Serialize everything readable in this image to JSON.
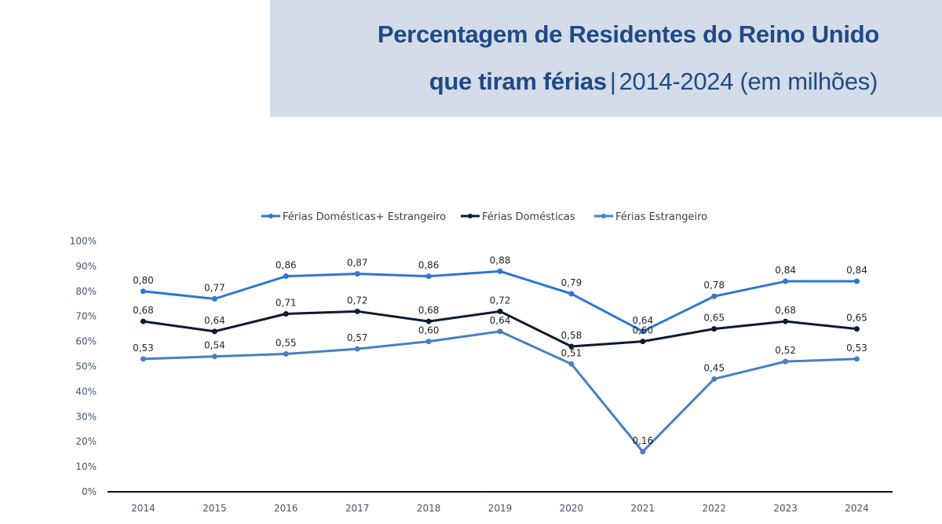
{
  "header": {
    "title_line1": "Percentagem de  Residentes do Reino Unido",
    "title_line2_bold": "que tiram férias",
    "title_line2_sep": "|",
    "title_line2_rest": "2014-2024 (em milhões)"
  },
  "chart_data": {
    "type": "line",
    "title": "Percentagem de Residentes do Reino Unido que tiram férias | 2014-2024 (em milhões)",
    "xlabel": "",
    "ylabel": "",
    "x": [
      "2014",
      "2015",
      "2016",
      "2017",
      "2018",
      "2019",
      "2020",
      "2021",
      "2022",
      "2023",
      "2024"
    ],
    "ylim": [
      0,
      1.0
    ],
    "yticks": [
      0,
      0.1,
      0.2,
      0.3,
      0.4,
      0.5,
      0.6,
      0.7,
      0.8,
      0.9,
      1.0
    ],
    "ytick_labels": [
      "0%",
      "10%",
      "20%",
      "30%",
      "40%",
      "50%",
      "60%",
      "70%",
      "80%",
      "90%",
      "100%"
    ],
    "grid": false,
    "legend_position": "top-center",
    "series": [
      {
        "name": "Férias Domésticas+ Estrangeiro",
        "color": "#2e75d6",
        "values": [
          0.8,
          0.77,
          0.86,
          0.87,
          0.86,
          0.88,
          0.79,
          0.64,
          0.78,
          0.84,
          0.84
        ],
        "labels": [
          "0,80",
          "0,77",
          "0,86",
          "0,87",
          "0,86",
          "0,88",
          "0,79",
          "0,64",
          "0,78",
          "0,84",
          "0,84"
        ]
      },
      {
        "name": "Férias Domésticas",
        "color": "#0d1a33",
        "values": [
          0.68,
          0.64,
          0.71,
          0.72,
          0.68,
          0.72,
          0.58,
          0.6,
          0.65,
          0.68,
          0.65
        ],
        "labels": [
          "0,68",
          "0,64",
          "0,71",
          "0,72",
          "0,68",
          "0,72",
          "0,58",
          "0,60",
          "0,65",
          "0,68",
          "0,65"
        ]
      },
      {
        "name": "Férias Estrangeiro",
        "color": "#4a7fc1",
        "values": [
          0.53,
          0.54,
          0.55,
          0.57,
          0.6,
          0.64,
          0.51,
          0.16,
          0.45,
          0.52,
          0.53
        ],
        "labels": [
          "0,53",
          "0,54",
          "0,55",
          "0,57",
          "0,60",
          "0,64",
          "0,51",
          "0,16",
          "0,45",
          "0,52",
          "0,53"
        ]
      }
    ]
  }
}
